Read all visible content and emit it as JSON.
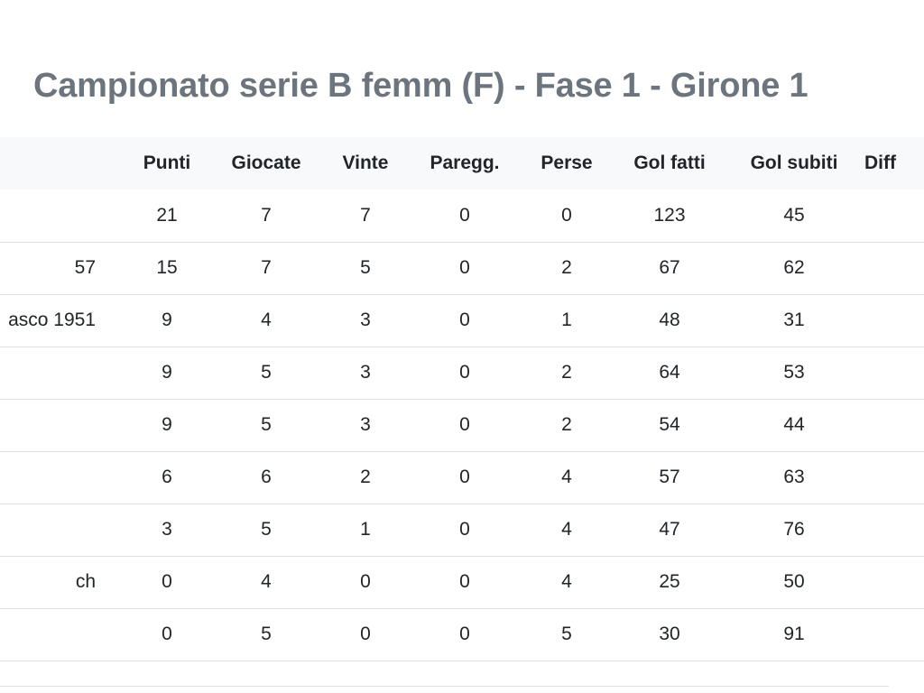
{
  "page": {
    "title": "Campionato serie B femm (F) - Fase 1 - Girone 1"
  },
  "table": {
    "headers": [
      "",
      "Punti",
      "Giocate",
      "Vinte",
      "Paregg.",
      "Perse",
      "Gol fatti",
      "Gol subiti",
      "Diff"
    ],
    "rows": [
      {
        "team": "",
        "values": [
          "21",
          "7",
          "7",
          "0",
          "0",
          "123",
          "45"
        ]
      },
      {
        "team": "57",
        "values": [
          "15",
          "7",
          "5",
          "0",
          "2",
          "67",
          "62"
        ]
      },
      {
        "team": "asco 1951",
        "values": [
          "9",
          "4",
          "3",
          "0",
          "1",
          "48",
          "31"
        ]
      },
      {
        "team": "",
        "values": [
          "9",
          "5",
          "3",
          "0",
          "2",
          "64",
          "53"
        ]
      },
      {
        "team": "",
        "values": [
          "9",
          "5",
          "3",
          "0",
          "2",
          "54",
          "44"
        ]
      },
      {
        "team": "",
        "values": [
          "6",
          "6",
          "2",
          "0",
          "4",
          "57",
          "63"
        ]
      },
      {
        "team": "",
        "values": [
          "3",
          "5",
          "1",
          "0",
          "4",
          "47",
          "76"
        ]
      },
      {
        "team": "ch",
        "values": [
          "0",
          "4",
          "0",
          "0",
          "4",
          "25",
          "50"
        ]
      },
      {
        "team": "",
        "values": [
          "0",
          "5",
          "0",
          "0",
          "5",
          "30",
          "91"
        ]
      }
    ]
  }
}
